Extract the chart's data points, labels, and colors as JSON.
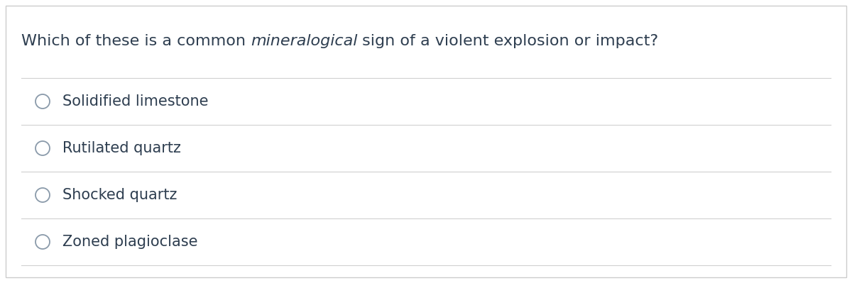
{
  "question_normal1": "Which of these is a common ",
  "question_italic": "mineralogical",
  "question_normal2": " sign of a violent explosion or impact?",
  "options": [
    "Solidified limestone",
    "Rutilated quartz",
    "Shocked quartz",
    "Zoned plagioclase"
  ],
  "background_color": "#ffffff",
  "text_color": "#2e3e50",
  "line_color": "#d0d0d0",
  "circle_edge_color": "#8a9aaa",
  "question_fontsize": 16,
  "option_fontsize": 15,
  "border_color": "#cccccc",
  "fig_width": 12.0,
  "fig_height": 3.99,
  "dpi": 100
}
